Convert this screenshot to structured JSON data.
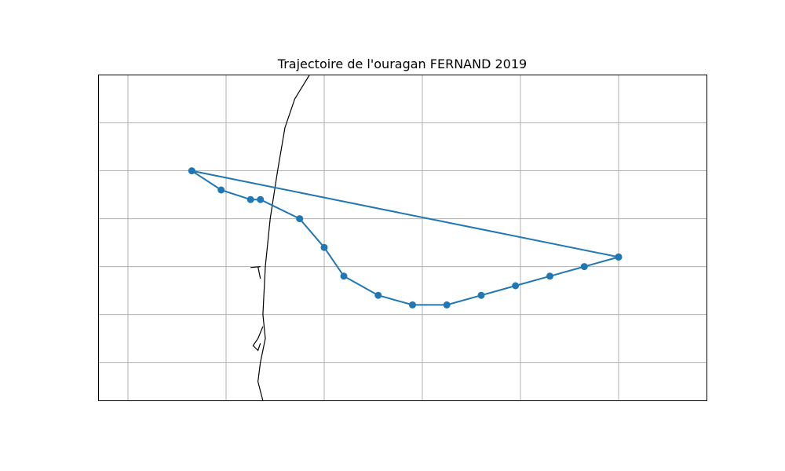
{
  "title": "Trajectoire de l'ouragan FERNAND 2019",
  "chart_data": {
    "type": "line",
    "title": "Trajectoire de l'ouragan FERNAND 2019",
    "xlabel": "",
    "ylabel": "",
    "xlim": [
      -102.5,
      -90.1
    ],
    "ylim": [
      20.6,
      27.4
    ],
    "grid": true,
    "gridlines": {
      "x": [
        -101.9,
        -99.9,
        -97.9,
        -95.9,
        -93.9,
        -91.9
      ],
      "y": [
        21.4,
        22.4,
        23.4,
        24.4,
        25.4,
        26.4
      ]
    },
    "series": [
      {
        "color": "#1f77b4",
        "marker": "circle",
        "points": [
          {
            "lon": -91.9,
            "lat": 23.6
          },
          {
            "lon": -92.6,
            "lat": 23.4
          },
          {
            "lon": -93.3,
            "lat": 23.2
          },
          {
            "lon": -94.0,
            "lat": 23.0
          },
          {
            "lon": -94.7,
            "lat": 22.8
          },
          {
            "lon": -95.4,
            "lat": 22.6
          },
          {
            "lon": -96.1,
            "lat": 22.6
          },
          {
            "lon": -96.8,
            "lat": 22.8
          },
          {
            "lon": -97.5,
            "lat": 23.2
          },
          {
            "lon": -97.9,
            "lat": 23.8
          },
          {
            "lon": -98.4,
            "lat": 24.4
          },
          {
            "lon": -99.2,
            "lat": 24.8
          },
          {
            "lon": -99.4,
            "lat": 24.8
          },
          {
            "lon": -100.0,
            "lat": 25.0
          },
          {
            "lon": -100.6,
            "lat": 25.4
          },
          {
            "lon": -91.9,
            "lat": 23.6
          }
        ]
      }
    ],
    "coastline_color": "#000000",
    "grid_color": "#b0b0b0",
    "coastline": [
      [
        [
          -98.2,
          27.4
        ],
        [
          -98.5,
          26.9
        ],
        [
          -98.7,
          26.3
        ],
        [
          -98.85,
          25.4
        ],
        [
          -99.0,
          24.4
        ],
        [
          -99.1,
          23.4
        ],
        [
          -99.15,
          22.4
        ],
        [
          -99.1,
          21.9
        ],
        [
          -99.2,
          21.4
        ],
        [
          -99.25,
          21.0
        ],
        [
          -99.15,
          20.6
        ]
      ],
      [
        [
          -99.25,
          23.4
        ],
        [
          -99.2,
          23.15
        ]
      ],
      [
        [
          -99.4,
          23.38
        ],
        [
          -99.2,
          23.4
        ]
      ],
      [
        [
          -99.15,
          22.15
        ],
        [
          -99.25,
          21.9
        ],
        [
          -99.35,
          21.75
        ],
        [
          -99.25,
          21.65
        ],
        [
          -99.2,
          21.8
        ]
      ]
    ]
  }
}
